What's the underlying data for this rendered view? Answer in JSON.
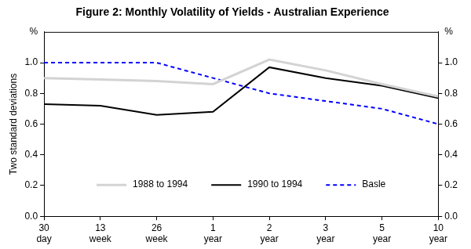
{
  "chart_data": {
    "type": "line",
    "title": "Figure 2: Monthly Volatility of Yields - Australian Experience",
    "y_label": "Two standard deviations",
    "annotations": [
      {
        "text": "%",
        "axis": "y"
      },
      {
        "text": "%",
        "axis": "y2"
      }
    ],
    "categories": [
      "30 day",
      "13 week",
      "26 week",
      "1 year",
      "2 year",
      "3 year",
      "5 year",
      "10 year"
    ],
    "series": [
      {
        "name": "1988 to 1994",
        "color": "#d3d3d3",
        "line_style": "solid",
        "marker": "none",
        "values": [
          0.9,
          0.89,
          0.88,
          0.86,
          1.02,
          0.95,
          0.86,
          0.78
        ]
      },
      {
        "name": "1990 to 1994",
        "color": "#000000",
        "line_style": "solid",
        "marker": "none",
        "values": [
          0.73,
          0.72,
          0.66,
          0.68,
          0.97,
          0.9,
          0.85,
          0.77
        ]
      },
      {
        "name": "Basle",
        "color": "#0000ff",
        "line_style": "dashed",
        "marker": "none",
        "values": [
          1.0,
          1.0,
          1.0,
          0.9,
          0.8,
          0.75,
          0.7,
          0.6
        ]
      }
    ],
    "ylim": [
      0,
      1.2
    ],
    "yticks": [
      {
        "value": 0,
        "label": "0.0"
      },
      {
        "value": 0.2,
        "label": "0.2"
      },
      {
        "value": 0.4,
        "label": "0.4"
      },
      {
        "value": 0.6,
        "label": "0.6"
      },
      {
        "value": 0.8,
        "label": "0.8"
      },
      {
        "value": 1,
        "label": "1.0"
      }
    ],
    "y2lim": [
      0,
      1.2
    ],
    "y2ticks": [
      {
        "value": 0,
        "label": "0.0"
      },
      {
        "value": 0.2,
        "label": "0.2"
      },
      {
        "value": 0.4,
        "label": "0.4"
      },
      {
        "value": 0.6,
        "label": "0.6"
      },
      {
        "value": 0.8,
        "label": "0.8"
      },
      {
        "value": 1,
        "label": "1.0"
      }
    ],
    "grid": false,
    "legend": "bottom"
  }
}
